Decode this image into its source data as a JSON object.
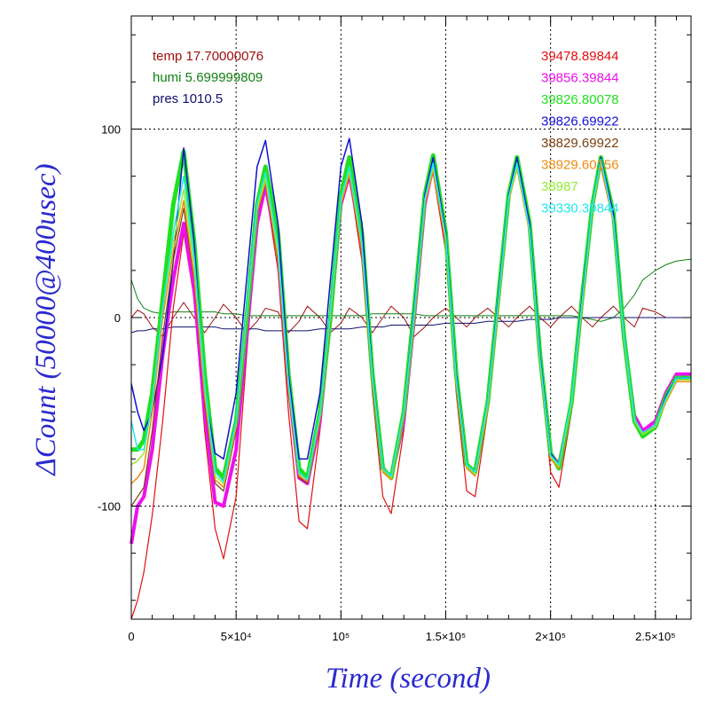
{
  "chart_data": {
    "type": "line",
    "title": "",
    "xlabel": "Time (second)",
    "ylabel": "ΔCount (50000@400usec)",
    "xlim": [
      0,
      267000
    ],
    "ylim": [
      -160,
      160
    ],
    "grid": true,
    "x_ticks": [
      {
        "value": 0,
        "label": "0"
      },
      {
        "value": 50000,
        "label": "5×10⁴"
      },
      {
        "value": 100000,
        "label": "10⁵"
      },
      {
        "value": 150000,
        "label": "1.5×10⁵"
      },
      {
        "value": 200000,
        "label": "2×10⁵"
      },
      {
        "value": 250000,
        "label": "2.5×10⁵"
      }
    ],
    "y_ticks": [
      {
        "value": 100,
        "label": "100"
      },
      {
        "value": 0,
        "label": "0"
      },
      {
        "value": -100,
        "label": "-100"
      }
    ],
    "env_annotations": [
      {
        "text": "temp 17.70000076",
        "color": "#a01010"
      },
      {
        "text": "humi 5.699999809",
        "color": "#108010"
      },
      {
        "text": "pres 1010.5",
        "color": "#10106e"
      }
    ],
    "x": [
      0,
      3000,
      6000,
      10000,
      15000,
      20000,
      25000,
      30000,
      35000,
      40000,
      44000,
      50000,
      55000,
      60000,
      64000,
      70000,
      75000,
      80000,
      84000,
      90000,
      95000,
      100000,
      104000,
      110000,
      115000,
      120000,
      124000,
      130000,
      135000,
      140000,
      144000,
      150000,
      155000,
      160000,
      164000,
      170000,
      175000,
      180000,
      184000,
      190000,
      195000,
      200000,
      204000,
      210000,
      215000,
      220000,
      224000,
      230000,
      235000,
      240000,
      244000,
      250000,
      255000,
      260000,
      267000
    ],
    "series": [
      {
        "name": "39478.89844",
        "color": "#e01010",
        "width": 1.2,
        "values": [
          -160,
          -150,
          -135,
          -105,
          -55,
          5,
          45,
          10,
          -60,
          -112,
          -128,
          -95,
          -20,
          50,
          69,
          25,
          -50,
          -108,
          -112,
          -60,
          0,
          60,
          75,
          30,
          -40,
          -95,
          -104,
          -60,
          0,
          60,
          77,
          35,
          -40,
          -92,
          -95,
          -50,
          10,
          65,
          80,
          45,
          -25,
          -82,
          -90,
          -50,
          10,
          60,
          80,
          50,
          -15,
          -55,
          -62,
          -55,
          -40,
          -30,
          -30
        ]
      },
      {
        "name": "39856.39844",
        "color": "#ee10ee",
        "width": 4,
        "values": [
          -120,
          -100,
          -95,
          -70,
          -20,
          20,
          50,
          15,
          -50,
          -98,
          -100,
          -70,
          -10,
          50,
          70,
          35,
          -35,
          -85,
          -88,
          -55,
          0,
          60,
          76,
          40,
          -30,
          -80,
          -85,
          -55,
          0,
          60,
          81,
          45,
          -30,
          -78,
          -82,
          -45,
          10,
          65,
          82,
          50,
          -20,
          -72,
          -78,
          -45,
          10,
          60,
          85,
          55,
          -10,
          -52,
          -60,
          -55,
          -40,
          -30,
          -30
        ]
      },
      {
        "name": "39826.80078",
        "color": "#20e020",
        "width": 5,
        "values": [
          -70,
          -70,
          -65,
          -40,
          10,
          60,
          88,
          40,
          -30,
          -80,
          -85,
          -55,
          0,
          60,
          80,
          45,
          -30,
          -80,
          -85,
          -50,
          0,
          65,
          85,
          45,
          -30,
          -80,
          -85,
          -50,
          5,
          65,
          86,
          45,
          -30,
          -78,
          -82,
          -45,
          10,
          65,
          85,
          50,
          -20,
          -72,
          -80,
          -45,
          10,
          60,
          85,
          55,
          -10,
          -55,
          -63,
          -58,
          -42,
          -32,
          -32
        ]
      },
      {
        "name": "39826.69922",
        "color": "#1010d0",
        "width": 1.5,
        "values": [
          -35,
          -50,
          -60,
          -50,
          -20,
          30,
          90,
          40,
          -40,
          -72,
          -75,
          -40,
          20,
          80,
          94,
          50,
          -30,
          -75,
          -75,
          -40,
          20,
          80,
          95,
          50,
          -30,
          -80,
          -85,
          -50,
          5,
          65,
          85,
          45,
          -30,
          -78,
          -82,
          -45,
          10,
          65,
          85,
          50,
          -20,
          -72,
          -78,
          -45,
          10,
          60,
          85,
          55,
          -10,
          -55,
          -62,
          -58,
          -42,
          -32,
          -32
        ]
      },
      {
        "name": "38829.69922",
        "color": "#7a4010",
        "width": 1.2,
        "values": [
          -100,
          -95,
          -90,
          -60,
          -10,
          30,
          58,
          20,
          -45,
          -88,
          -92,
          -60,
          0,
          55,
          71,
          30,
          -40,
          -85,
          -88,
          -55,
          0,
          60,
          75,
          35,
          -35,
          -82,
          -86,
          -52,
          0,
          60,
          78,
          40,
          -35,
          -80,
          -84,
          -48,
          5,
          62,
          79,
          45,
          -25,
          -75,
          -80,
          -46,
          5,
          58,
          82,
          50,
          -12,
          -55,
          -62,
          -58,
          -45,
          -34,
          -34
        ]
      },
      {
        "name": "38929.60156",
        "color": "#f08a10",
        "width": 1.5,
        "values": [
          -88,
          -85,
          -80,
          -50,
          0,
          35,
          62,
          22,
          -42,
          -86,
          -90,
          -58,
          0,
          56,
          72,
          32,
          -38,
          -84,
          -87,
          -54,
          0,
          60,
          76,
          36,
          -34,
          -82,
          -86,
          -52,
          0,
          60,
          78,
          40,
          -35,
          -80,
          -84,
          -48,
          5,
          62,
          79,
          45,
          -25,
          -75,
          -80,
          -46,
          5,
          58,
          82,
          50,
          -12,
          -55,
          -62,
          -58,
          -45,
          -34,
          -34
        ]
      },
      {
        "name": "38987",
        "color": "#90ee30",
        "width": 1.5,
        "values": [
          -78,
          -76,
          -72,
          -45,
          5,
          40,
          68,
          28,
          -38,
          -84,
          -88,
          -56,
          2,
          58,
          74,
          34,
          -36,
          -83,
          -86,
          -52,
          2,
          62,
          78,
          38,
          -32,
          -81,
          -85,
          -50,
          2,
          62,
          80,
          42,
          -33,
          -79,
          -83,
          -46,
          7,
          63,
          80,
          46,
          -23,
          -74,
          -79,
          -45,
          7,
          59,
          83,
          51,
          -11,
          -55,
          -62,
          -58,
          -44,
          -33,
          -33
        ]
      },
      {
        "name": "39330.39844",
        "color": "#20e8f0",
        "width": 1.5,
        "values": [
          -55,
          -70,
          -70,
          -45,
          5,
          45,
          75,
          32,
          -35,
          -82,
          -87,
          -55,
          3,
          60,
          77,
          38,
          -34,
          -82,
          -86,
          -51,
          3,
          63,
          80,
          40,
          -31,
          -80,
          -84,
          -50,
          3,
          63,
          82,
          43,
          -32,
          -78,
          -82,
          -45,
          8,
          64,
          82,
          47,
          -22,
          -73,
          -78,
          -44,
          8,
          60,
          84,
          52,
          -10,
          -54,
          -61,
          -57,
          -43,
          -32,
          -32
        ]
      }
    ],
    "env_curves": [
      {
        "name": "temp",
        "color": "#a01010",
        "values": [
          0,
          4,
          2,
          -5,
          -10,
          0,
          8,
          0,
          -8,
          0,
          7,
          0,
          -8,
          -2,
          5,
          3,
          -8,
          -2,
          6,
          0,
          -8,
          -3,
          5,
          0,
          -8,
          0,
          6,
          0,
          -10,
          -5,
          0,
          5,
          0,
          -5,
          0,
          5,
          0,
          -5,
          0,
          6,
          0,
          -5,
          0,
          6,
          0,
          -5,
          0,
          6,
          0,
          -5,
          5,
          3,
          0,
          0,
          0
        ]
      },
      {
        "name": "humi",
        "color": "#108010",
        "values": [
          20,
          10,
          5,
          3,
          2,
          3,
          3,
          3,
          3,
          3,
          2,
          2,
          1,
          1,
          1,
          1,
          1,
          1,
          1,
          1,
          1,
          1,
          1,
          1,
          2,
          2,
          2,
          2,
          2,
          1,
          1,
          1,
          1,
          1,
          1,
          1,
          1,
          1,
          1,
          1,
          1,
          1,
          1,
          1,
          0,
          -1,
          -2,
          0,
          5,
          12,
          20,
          25,
          28,
          30,
          31
        ]
      },
      {
        "name": "pres",
        "color": "#10106e",
        "values": [
          -8,
          -7,
          -7,
          -6,
          -6,
          -5,
          -5,
          -5,
          -5,
          -5,
          -6,
          -6,
          -6,
          -6,
          -7,
          -7,
          -7,
          -7,
          -7,
          -6,
          -6,
          -6,
          -6,
          -5,
          -5,
          -5,
          -4,
          -4,
          -4,
          -4,
          -4,
          -3,
          -3,
          -3,
          -3,
          -2,
          -2,
          -2,
          -2,
          -1,
          -1,
          -1,
          0,
          0,
          0,
          0,
          0,
          0,
          0,
          0,
          0,
          0,
          0,
          0,
          0
        ]
      }
    ]
  }
}
